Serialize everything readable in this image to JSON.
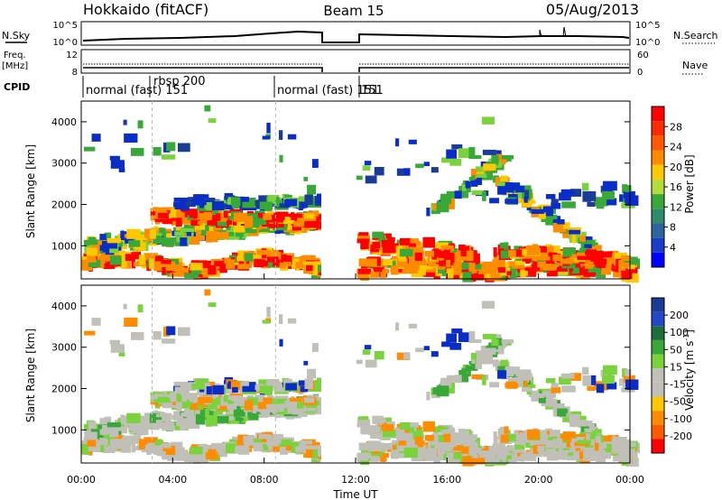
{
  "header": {
    "title": "Hokkaido (fitACF)",
    "beam": "Beam 15",
    "date": "05/Aug/2013"
  },
  "top_panels": {
    "nsky_label": "N.Sky",
    "nsky_ticks": [
      "10^5",
      "10^0"
    ],
    "nsearch_label": "N.Search",
    "freq_label": "Freq.",
    "freq_unit": "[MHz]",
    "freq_ticks": [
      "12",
      "8"
    ],
    "nave_label": "Nave",
    "nave_ticks": [
      "60",
      "0"
    ],
    "cpid_label": "CPID",
    "cpid_segments": [
      {
        "label": "normal (fast) 151",
        "start_hour": 0.0
      },
      {
        "label": "rbsp 200",
        "start_hour": 3.1
      },
      {
        "label": "normal (fast) 151",
        "start_hour": 8.5
      },
      {
        "label": "151",
        "start_hour": 12.0
      }
    ]
  },
  "colors": {
    "red": "#ff0000",
    "orange": "#ff8c00",
    "yellow": "#ffc800",
    "green": "#38a838",
    "lightgreen": "#7ad23c",
    "gray": "#c0c0b8",
    "blue": "#0a2dc8",
    "darkblue": "#1a3c96"
  },
  "chart_data": [
    {
      "type": "heatmap",
      "name": "power",
      "xlabel": "",
      "ylabel": "Slant Range [km]",
      "xlim": [
        0,
        24
      ],
      "ylim": [
        200,
        4500
      ],
      "yticks": [
        "1000",
        "2000",
        "3000",
        "4000"
      ],
      "colorbar_label": "Power [dB]",
      "colorbar_ticks": [
        "28",
        "24",
        "20",
        "16",
        "12",
        "8",
        "4"
      ],
      "data_gap_hours": [
        10.5,
        12.0
      ]
    },
    {
      "type": "heatmap",
      "name": "velocity",
      "xlabel": "Time UT",
      "ylabel": "Slant Range [km]",
      "xlim": [
        0,
        24
      ],
      "ylim": [
        200,
        4500
      ],
      "yticks": [
        "1000",
        "2000",
        "3000",
        "4000"
      ],
      "xticks": [
        "00:00",
        "04:00",
        "08:00",
        "12:00",
        "16:00",
        "20:00",
        "00:00"
      ],
      "colorbar_label": "Velocity [m s",
      "colorbar_label_sup": "-1",
      "colorbar_label_end": "]",
      "colorbar_ticks": [
        "200",
        "100",
        "50",
        "15",
        "-15",
        "-50",
        "-100",
        "-200"
      ],
      "data_gap_hours": [
        10.5,
        12.0
      ]
    }
  ]
}
